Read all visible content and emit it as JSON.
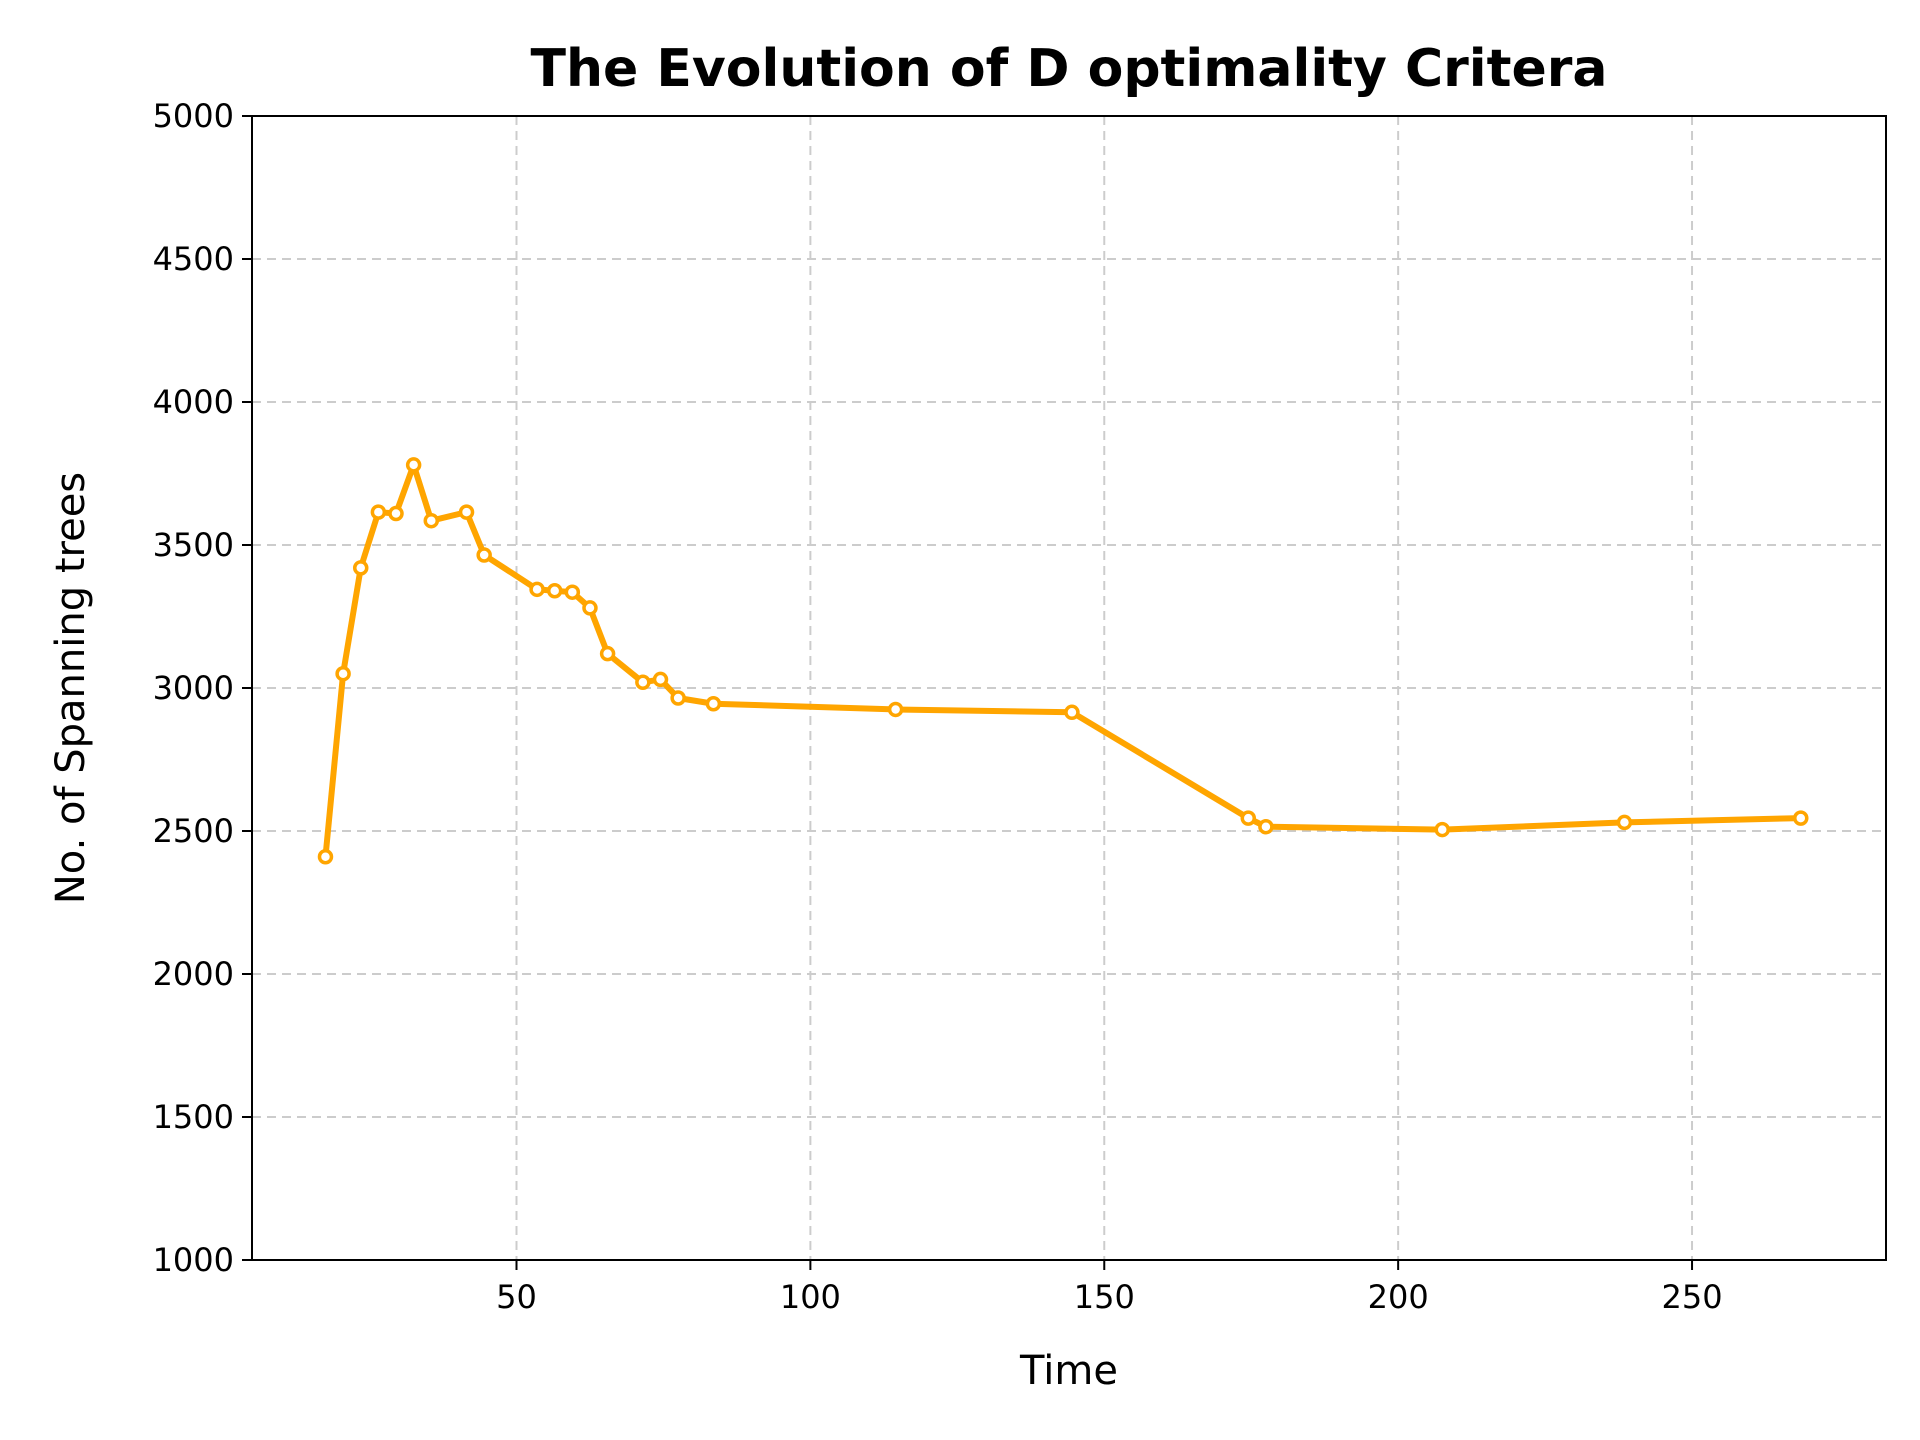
{
  "chart_data": {
    "type": "line",
    "title": "The Evolution of D optimality Critera",
    "xlabel": "Time",
    "ylabel": "No. of Spanning trees",
    "xlim": [
      5,
      283
    ],
    "ylim": [
      1000,
      5000
    ],
    "xticks": [
      50,
      100,
      150,
      200,
      250
    ],
    "yticks": [
      1000,
      1500,
      2000,
      2500,
      3000,
      3500,
      4000,
      4500,
      5000
    ],
    "grid": true,
    "colors": {
      "line": "#FFA500",
      "marker_fill": "#ffffff"
    },
    "series": [
      {
        "x": [
          17.5,
          20.5,
          23.5,
          26.5,
          29.5,
          32.5,
          35.5,
          41.5,
          44.5,
          53.5,
          56.5,
          59.5,
          62.5,
          65.5,
          71.5,
          74.5,
          77.5,
          83.5,
          114.5,
          144.5,
          174.5,
          177.5,
          207.5,
          238.5,
          268.5
        ],
        "y": [
          2410,
          3050,
          3420,
          3615,
          3610,
          3780,
          3585,
          3615,
          3465,
          3345,
          3340,
          3335,
          3280,
          3120,
          3020,
          3030,
          2965,
          2945,
          2925,
          2915,
          2545,
          2515,
          2505,
          2530,
          2545
        ]
      }
    ]
  }
}
